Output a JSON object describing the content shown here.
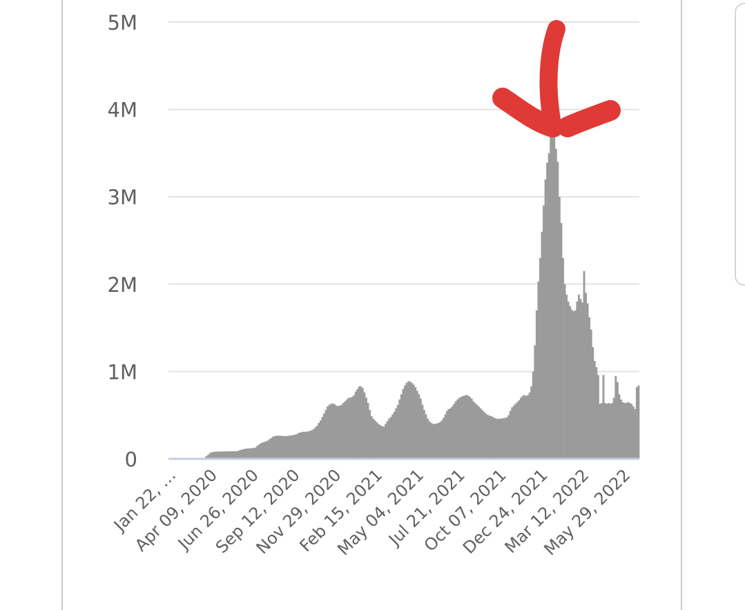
{
  "chart_data": {
    "type": "bar",
    "title": "",
    "xlabel": "",
    "ylabel": "",
    "ylim": [
      0,
      5000000
    ],
    "y_ticks": [
      {
        "value": 0,
        "label": "0"
      },
      {
        "value": 1000000,
        "label": "1M"
      },
      {
        "value": 2000000,
        "label": "2M"
      },
      {
        "value": 3000000,
        "label": "3M"
      },
      {
        "value": 4000000,
        "label": "4M"
      },
      {
        "value": 5000000,
        "label": "5M"
      }
    ],
    "x_tick_labels": [
      "Jan 22, …",
      "Apr 09, 2020",
      "Jun 26, 2020",
      "Sep 12, 2020",
      "Nov 29, 2020",
      "Feb 15, 2021",
      "May 04, 2021",
      "Jul 21, 2021",
      "Oct 07, 2021",
      "Dec 24, 2021",
      "Mar 12, 2022",
      "May 29, 2022"
    ],
    "x_range": [
      "Jan 22, 2020",
      "Jul 2022"
    ],
    "bar_values": [
      0,
      0,
      0,
      0,
      0,
      0,
      0,
      0,
      0,
      0,
      0,
      0,
      0,
      0,
      0,
      0,
      0,
      0,
      0,
      0,
      0,
      30000,
      45000,
      65000,
      75000,
      80000,
      82000,
      83000,
      84000,
      84000,
      85000,
      85000,
      86000,
      86000,
      87000,
      87000,
      88000,
      88000,
      89000,
      90000,
      100000,
      105000,
      110000,
      115000,
      118000,
      120000,
      121000,
      122000,
      125000,
      130000,
      150000,
      165000,
      178000,
      188000,
      195000,
      200000,
      210000,
      225000,
      240000,
      255000,
      262000,
      265000,
      266000,
      265000,
      264000,
      262000,
      261000,
      262000,
      265000,
      268000,
      270000,
      275000,
      280000,
      290000,
      300000,
      305000,
      310000,
      310000,
      312000,
      315000,
      320000,
      328000,
      340000,
      360000,
      380000,
      410000,
      440000,
      480000,
      520000,
      560000,
      600000,
      620000,
      630000,
      635000,
      625000,
      610000,
      605000,
      610000,
      620000,
      640000,
      660000,
      680000,
      700000,
      700000,
      710000,
      730000,
      770000,
      800000,
      830000,
      830000,
      810000,
      760000,
      700000,
      640000,
      560000,
      490000,
      460000,
      440000,
      420000,
      400000,
      385000,
      375000,
      370000,
      400000,
      430000,
      460000,
      480000,
      510000,
      540000,
      580000,
      620000,
      680000,
      740000,
      800000,
      840000,
      870000,
      890000,
      885000,
      870000,
      850000,
      820000,
      780000,
      740000,
      690000,
      620000,
      560000,
      510000,
      460000,
      430000,
      410000,
      400000,
      400000,
      405000,
      410000,
      420000,
      440000,
      470000,
      510000,
      550000,
      570000,
      580000,
      600000,
      630000,
      660000,
      680000,
      700000,
      710000,
      720000,
      725000,
      730000,
      725000,
      710000,
      690000,
      660000,
      640000,
      620000,
      600000,
      580000,
      560000,
      540000,
      520000,
      505000,
      495000,
      490000,
      480000,
      470000,
      460000,
      458000,
      460000,
      462000,
      465000,
      470000,
      475000,
      500000,
      550000,
      590000,
      610000,
      630000,
      650000,
      670000,
      700000,
      720000,
      730000,
      720000,
      730000,
      760000,
      830000,
      1000000,
      1300000,
      1700000,
      2030000,
      2300000,
      2600000,
      2900000,
      3200000,
      3390000,
      3500000,
      3700000,
      3800000,
      3700000,
      3550000,
      3400000,
      3000000,
      2700000,
      2300000,
      2000000,
      1880000,
      1800000,
      1750000,
      1710000,
      1690000,
      1700000,
      1800000,
      1880000,
      1830000,
      1790000,
      2150000,
      1900000,
      1780000,
      1620000,
      1480000,
      1280000,
      1120000,
      1050000,
      960000,
      630000,
      640000,
      960000,
      640000,
      630000,
      640000,
      630000,
      640000,
      700000,
      950000,
      880000,
      740000,
      680000,
      650000,
      640000,
      640000,
      650000,
      640000,
      630000,
      600000,
      570000,
      820000,
      840000
    ]
  },
  "annotation": {
    "shape": "hand-drawn arrow",
    "color": "#e03a36"
  }
}
